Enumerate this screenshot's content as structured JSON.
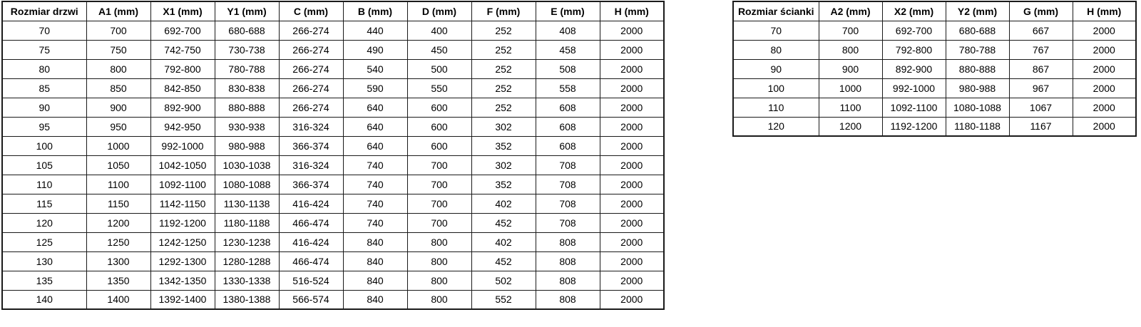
{
  "page": {
    "background_color": "#ffffff",
    "text_color": "#000000",
    "border_color": "#1a1a1a"
  },
  "door_table": {
    "headers": [
      "Rozmiar drzwi",
      "A1 (mm)",
      "X1 (mm)",
      "Y1 (mm)",
      "C (mm)",
      "B (mm)",
      "D (mm)",
      "F (mm)",
      "E (mm)",
      "H (mm)"
    ],
    "rows": [
      [
        "70",
        "700",
        "692-700",
        "680-688",
        "266-274",
        "440",
        "400",
        "252",
        "408",
        "2000"
      ],
      [
        "75",
        "750",
        "742-750",
        "730-738",
        "266-274",
        "490",
        "450",
        "252",
        "458",
        "2000"
      ],
      [
        "80",
        "800",
        "792-800",
        "780-788",
        "266-274",
        "540",
        "500",
        "252",
        "508",
        "2000"
      ],
      [
        "85",
        "850",
        "842-850",
        "830-838",
        "266-274",
        "590",
        "550",
        "252",
        "558",
        "2000"
      ],
      [
        "90",
        "900",
        "892-900",
        "880-888",
        "266-274",
        "640",
        "600",
        "252",
        "608",
        "2000"
      ],
      [
        "95",
        "950",
        "942-950",
        "930-938",
        "316-324",
        "640",
        "600",
        "302",
        "608",
        "2000"
      ],
      [
        "100",
        "1000",
        "992-1000",
        "980-988",
        "366-374",
        "640",
        "600",
        "352",
        "608",
        "2000"
      ],
      [
        "105",
        "1050",
        "1042-1050",
        "1030-1038",
        "316-324",
        "740",
        "700",
        "302",
        "708",
        "2000"
      ],
      [
        "110",
        "1100",
        "1092-1100",
        "1080-1088",
        "366-374",
        "740",
        "700",
        "352",
        "708",
        "2000"
      ],
      [
        "115",
        "1150",
        "1142-1150",
        "1130-1138",
        "416-424",
        "740",
        "700",
        "402",
        "708",
        "2000"
      ],
      [
        "120",
        "1200",
        "1192-1200",
        "1180-1188",
        "466-474",
        "740",
        "700",
        "452",
        "708",
        "2000"
      ],
      [
        "125",
        "1250",
        "1242-1250",
        "1230-1238",
        "416-424",
        "840",
        "800",
        "402",
        "808",
        "2000"
      ],
      [
        "130",
        "1300",
        "1292-1300",
        "1280-1288",
        "466-474",
        "840",
        "800",
        "452",
        "808",
        "2000"
      ],
      [
        "135",
        "1350",
        "1342-1350",
        "1330-1338",
        "516-524",
        "840",
        "800",
        "502",
        "808",
        "2000"
      ],
      [
        "140",
        "1400",
        "1392-1400",
        "1380-1388",
        "566-574",
        "840",
        "800",
        "552",
        "808",
        "2000"
      ]
    ]
  },
  "wall_table": {
    "headers": [
      "Rozmiar ścianki",
      "A2 (mm)",
      "X2 (mm)",
      "Y2 (mm)",
      "G (mm)",
      "H (mm)"
    ],
    "rows": [
      [
        "70",
        "700",
        "692-700",
        "680-688",
        "667",
        "2000"
      ],
      [
        "80",
        "800",
        "792-800",
        "780-788",
        "767",
        "2000"
      ],
      [
        "90",
        "900",
        "892-900",
        "880-888",
        "867",
        "2000"
      ],
      [
        "100",
        "1000",
        "992-1000",
        "980-988",
        "967",
        "2000"
      ],
      [
        "110",
        "1100",
        "1092-1100",
        "1080-1088",
        "1067",
        "2000"
      ],
      [
        "120",
        "1200",
        "1192-1200",
        "1180-1188",
        "1167",
        "2000"
      ]
    ]
  }
}
